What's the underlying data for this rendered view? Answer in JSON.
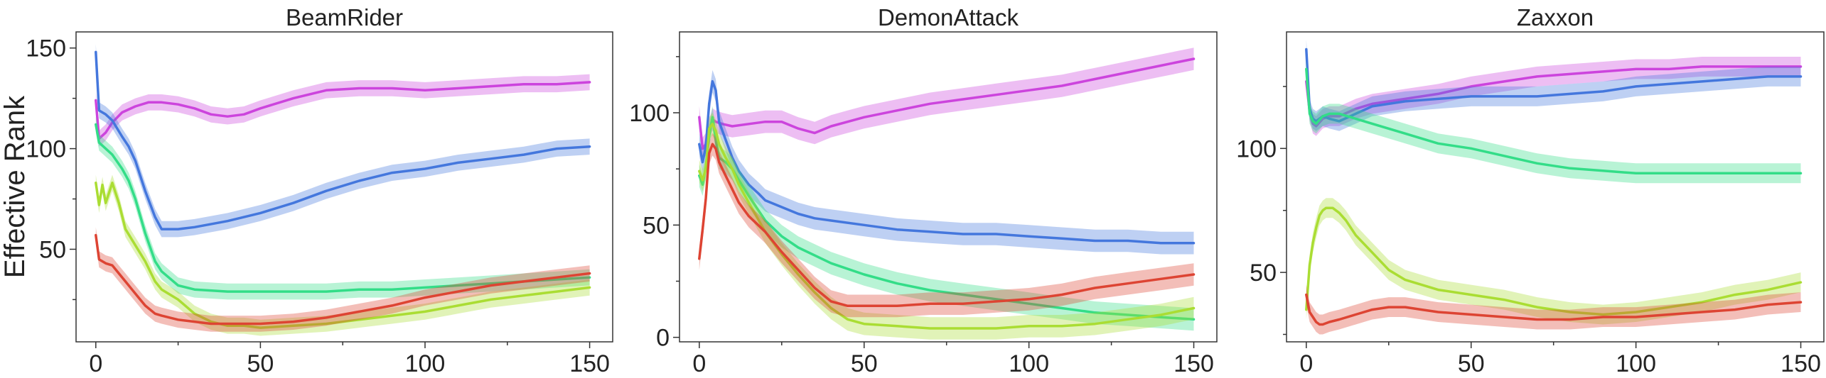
{
  "chart_data": [
    {
      "type": "line",
      "title": "BeamRider",
      "ylabel": "Effective Rank",
      "xlim": [
        -6,
        157
      ],
      "ylim": [
        4,
        158
      ],
      "xticks": [
        0,
        50,
        100,
        150
      ],
      "yticks": [
        50,
        100,
        150
      ],
      "series": [
        {
          "color": "#cc44dd",
          "x": [
            0,
            1,
            3,
            5,
            8,
            12,
            16,
            20,
            25,
            30,
            35,
            40,
            45,
            50,
            60,
            70,
            80,
            90,
            100,
            110,
            120,
            130,
            140,
            150
          ],
          "y": [
            124,
            105,
            108,
            113,
            118,
            121,
            123,
            123,
            122,
            120,
            117,
            116,
            117,
            120,
            125,
            129,
            130,
            130,
            129,
            130,
            131,
            132,
            132,
            133
          ]
        },
        {
          "color": "#4477dd",
          "x": [
            0,
            1,
            3,
            5,
            8,
            10,
            12,
            15,
            18,
            20,
            25,
            30,
            40,
            50,
            60,
            70,
            80,
            90,
            100,
            110,
            120,
            130,
            140,
            150
          ],
          "y": [
            148,
            119,
            117,
            114,
            106,
            101,
            94,
            79,
            66,
            60,
            60,
            61,
            64,
            68,
            73,
            79,
            84,
            88,
            90,
            93,
            95,
            97,
            100,
            101
          ]
        },
        {
          "color": "#33dd88",
          "x": [
            0,
            1,
            3,
            5,
            8,
            10,
            12,
            15,
            18,
            20,
            25,
            30,
            40,
            50,
            60,
            70,
            80,
            90,
            100,
            110,
            120,
            130,
            140,
            150
          ],
          "y": [
            112,
            103,
            100,
            97,
            90,
            84,
            75,
            58,
            44,
            39,
            32,
            30,
            29,
            29,
            29,
            29,
            30,
            30,
            31,
            32,
            33,
            34,
            35,
            36
          ]
        },
        {
          "color": "#aadd33",
          "x": [
            0,
            1,
            2,
            3,
            5,
            7,
            9,
            12,
            15,
            18,
            20,
            25,
            30,
            35,
            40,
            45,
            50,
            60,
            70,
            80,
            90,
            100,
            110,
            120,
            130,
            140,
            150
          ],
          "y": [
            83,
            72,
            82,
            73,
            83,
            73,
            60,
            52,
            44,
            34,
            30,
            25,
            18,
            14,
            12,
            12,
            11,
            12,
            13,
            15,
            17,
            19,
            22,
            25,
            27,
            29,
            31
          ]
        },
        {
          "color": "#dd4433",
          "x": [
            0,
            1,
            3,
            5,
            7,
            9,
            11,
            13,
            15,
            18,
            20,
            25,
            30,
            35,
            40,
            50,
            60,
            70,
            80,
            90,
            100,
            110,
            120,
            130,
            140,
            150
          ],
          "y": [
            57,
            45,
            43,
            42,
            38,
            34,
            30,
            26,
            22,
            18,
            17,
            15,
            14,
            13,
            13,
            13,
            14,
            16,
            19,
            22,
            26,
            29,
            32,
            34,
            36,
            38
          ]
        }
      ]
    },
    {
      "type": "line",
      "title": "DemonAttack",
      "ylabel": "",
      "xlim": [
        -6,
        157
      ],
      "ylim": [
        -2,
        136
      ],
      "xticks": [
        0,
        50,
        100,
        150
      ],
      "yticks": [
        0,
        50,
        100
      ],
      "series": [
        {
          "color": "#cc44dd",
          "x": [
            0,
            1,
            2,
            3,
            4,
            5,
            7,
            10,
            15,
            20,
            25,
            30,
            35,
            40,
            45,
            50,
            60,
            70,
            80,
            90,
            100,
            110,
            120,
            130,
            140,
            150
          ],
          "y": [
            98,
            84,
            86,
            92,
            97,
            96,
            95,
            94,
            95,
            96,
            96,
            93,
            91,
            94,
            96,
            98,
            101,
            104,
            106,
            108,
            110,
            112,
            115,
            118,
            121,
            124
          ]
        },
        {
          "color": "#4477dd",
          "x": [
            0,
            1,
            2,
            3,
            4,
            5,
            6,
            8,
            10,
            12,
            15,
            18,
            20,
            25,
            30,
            35,
            40,
            50,
            60,
            70,
            80,
            90,
            100,
            110,
            120,
            130,
            140,
            150
          ],
          "y": [
            86,
            78,
            85,
            104,
            114,
            110,
            96,
            88,
            80,
            74,
            68,
            64,
            61,
            58,
            55,
            53,
            52,
            50,
            48,
            47,
            46,
            46,
            45,
            44,
            43,
            43,
            42,
            42
          ]
        },
        {
          "color": "#33dd88",
          "x": [
            0,
            1,
            2,
            3,
            4,
            5,
            6,
            8,
            10,
            12,
            15,
            20,
            25,
            30,
            40,
            50,
            60,
            70,
            80,
            90,
            100,
            110,
            120,
            130,
            140,
            150
          ],
          "y": [
            72,
            68,
            76,
            90,
            98,
            88,
            80,
            78,
            75,
            70,
            63,
            52,
            45,
            40,
            33,
            28,
            24,
            21,
            19,
            17,
            15,
            13,
            11,
            10,
            9,
            8
          ]
        },
        {
          "color": "#aadd33",
          "x": [
            0,
            1,
            2,
            3,
            4,
            5,
            6,
            8,
            10,
            12,
            15,
            20,
            25,
            30,
            35,
            40,
            45,
            50,
            60,
            70,
            80,
            90,
            100,
            110,
            120,
            130,
            140,
            150
          ],
          "y": [
            74,
            70,
            75,
            93,
            95,
            92,
            86,
            80,
            75,
            68,
            60,
            47,
            37,
            28,
            20,
            13,
            8,
            6,
            5,
            4,
            4,
            4,
            5,
            5,
            6,
            8,
            10,
            13
          ]
        },
        {
          "color": "#dd4433",
          "x": [
            0,
            1,
            2,
            3,
            4,
            5,
            6,
            8,
            10,
            12,
            15,
            20,
            25,
            30,
            35,
            40,
            45,
            50,
            60,
            70,
            80,
            90,
            100,
            110,
            120,
            130,
            140,
            150
          ],
          "y": [
            35,
            48,
            62,
            82,
            86,
            84,
            78,
            72,
            66,
            60,
            54,
            47,
            38,
            30,
            22,
            16,
            14,
            14,
            14,
            15,
            15,
            16,
            17,
            19,
            22,
            24,
            26,
            28
          ]
        }
      ]
    },
    {
      "type": "line",
      "title": "Zaxxon",
      "ylabel": "",
      "xlim": [
        -6,
        157
      ],
      "ylim": [
        22,
        147
      ],
      "xticks": [
        0,
        50,
        100,
        150
      ],
      "yticks": [
        50,
        100
      ],
      "series": [
        {
          "color": "#cc44dd",
          "x": [
            0,
            1,
            2,
            3,
            5,
            7,
            10,
            15,
            20,
            30,
            40,
            50,
            60,
            70,
            80,
            90,
            100,
            110,
            120,
            130,
            140,
            150
          ],
          "y": [
            127,
            115,
            110,
            109,
            112,
            113,
            113,
            116,
            118,
            120,
            122,
            125,
            127,
            129,
            130,
            131,
            132,
            132,
            133,
            133,
            133,
            133
          ]
        },
        {
          "color": "#4477dd",
          "x": [
            0,
            1,
            2,
            3,
            5,
            7,
            10,
            15,
            20,
            30,
            40,
            50,
            60,
            70,
            80,
            90,
            100,
            110,
            120,
            130,
            140,
            150
          ],
          "y": [
            140,
            116,
            112,
            111,
            113,
            112,
            111,
            114,
            117,
            119,
            120,
            121,
            121,
            121,
            122,
            123,
            125,
            126,
            127,
            128,
            129,
            129
          ]
        },
        {
          "color": "#33dd88",
          "x": [
            0,
            1,
            2,
            3,
            5,
            7,
            10,
            15,
            20,
            30,
            40,
            50,
            60,
            70,
            80,
            90,
            100,
            110,
            120,
            130,
            140,
            150
          ],
          "y": [
            132,
            114,
            111,
            110,
            113,
            114,
            114,
            112,
            110,
            106,
            102,
            100,
            97,
            94,
            92,
            91,
            90,
            90,
            90,
            90,
            90,
            90
          ]
        },
        {
          "color": "#aadd33",
          "x": [
            0,
            1,
            2,
            3,
            4,
            5,
            6,
            8,
            10,
            12,
            15,
            20,
            25,
            30,
            35,
            40,
            50,
            60,
            70,
            80,
            90,
            100,
            110,
            120,
            130,
            140,
            150
          ],
          "y": [
            35,
            53,
            62,
            68,
            73,
            75,
            76,
            76,
            74,
            71,
            65,
            58,
            51,
            47,
            45,
            43,
            41,
            39,
            36,
            34,
            33,
            34,
            36,
            38,
            41,
            43,
            46
          ]
        },
        {
          "color": "#dd4433",
          "x": [
            0,
            1,
            2,
            3,
            4,
            5,
            7,
            10,
            15,
            20,
            25,
            30,
            35,
            40,
            50,
            60,
            70,
            80,
            90,
            100,
            110,
            120,
            130,
            140,
            150
          ],
          "y": [
            41,
            34,
            32,
            30,
            29,
            29,
            30,
            31,
            33,
            35,
            36,
            36,
            35,
            34,
            33,
            32,
            31,
            31,
            32,
            32,
            33,
            34,
            35,
            37,
            38
          ]
        }
      ]
    }
  ]
}
